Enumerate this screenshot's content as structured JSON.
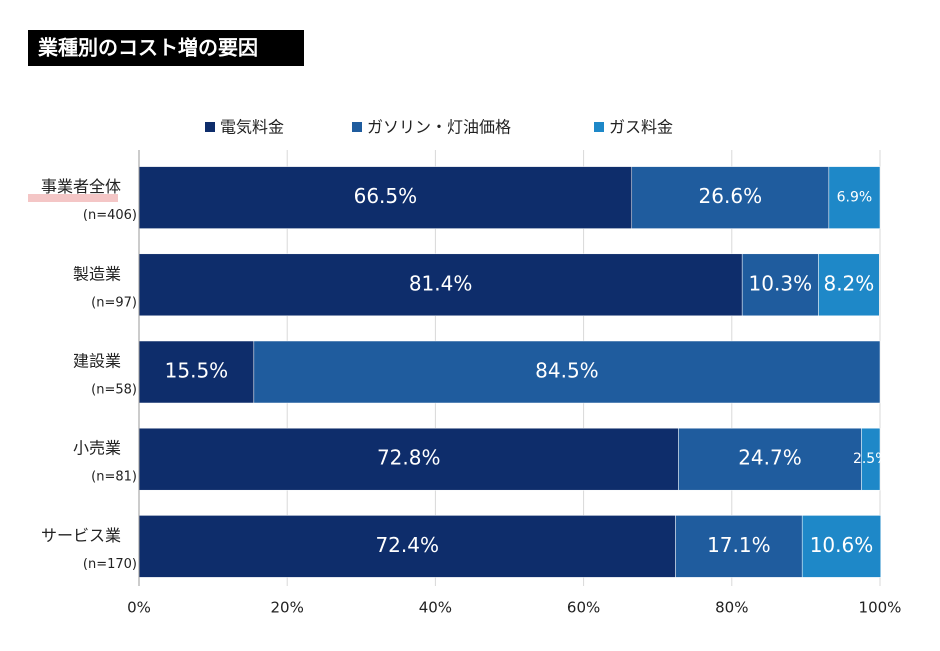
{
  "chart_data": {
    "type": "stacked_barh",
    "title": "業種別のコスト増の要因",
    "categories": [
      "事業者全体",
      "製造業",
      "建設業",
      "小売業",
      "サービス業"
    ],
    "category_notes": [
      "(n=406)",
      "(n=97)",
      "(n=58)",
      "(n=81)",
      "(n=170)"
    ],
    "series": [
      {
        "name": "電気料金",
        "color": "#0e2d6b",
        "values": [
          66.5,
          81.4,
          15.5,
          72.8,
          72.4
        ],
        "value_labels": [
          "66.5%",
          "81.4%",
          "15.5%",
          "72.8%",
          "72.4%"
        ]
      },
      {
        "name": "ガソリン・灯油価格",
        "color": "#1f5c9e",
        "values": [
          26.6,
          10.3,
          84.5,
          24.7,
          17.1
        ],
        "value_labels": [
          "26.6%",
          "10.3%",
          "84.5%",
          "24.7%",
          "17.1%"
        ]
      },
      {
        "name": "ガス料金",
        "color": "#1e88c8",
        "values": [
          6.9,
          8.2,
          null,
          2.5,
          10.6
        ],
        "value_labels": [
          "6.9%",
          "8.2%",
          null,
          "2.5%",
          "10.6%"
        ]
      }
    ],
    "xlim": [
      0,
      100
    ],
    "xticks": [
      {
        "value": 0,
        "label": "0%"
      },
      {
        "value": 20,
        "label": "20%"
      },
      {
        "value": 40,
        "label": "40%"
      },
      {
        "value": 60,
        "label": "60%"
      },
      {
        "value": 80,
        "label": "80%"
      },
      {
        "value": 100,
        "label": "100%"
      }
    ],
    "grid": true,
    "legend": "top"
  }
}
